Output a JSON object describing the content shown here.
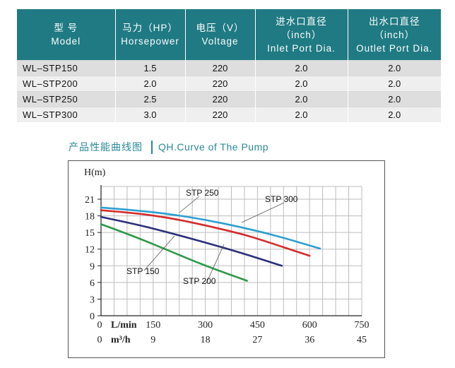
{
  "table": {
    "headers": [
      {
        "cn": "型 号",
        "en": "Model"
      },
      {
        "cn": "马力（HP）",
        "en": "Horsepower"
      },
      {
        "cn": "电压（V）",
        "en": "Voltage"
      },
      {
        "cn": "进水口直径",
        "paren": "（inch）",
        "en": "Inlet Port Dia."
      },
      {
        "cn": "出水口直径",
        "paren": "（inch）",
        "en": "Outlet Port Dia."
      }
    ],
    "rows": [
      {
        "model": "WL–STP150",
        "hp": "1.5",
        "voltage": "220",
        "inlet": "2.0",
        "outlet": "2.0"
      },
      {
        "model": "WL–STP200",
        "hp": "2.0",
        "voltage": "220",
        "inlet": "2.0",
        "outlet": "2.0"
      },
      {
        "model": "WL–STP250",
        "hp": "2.5",
        "voltage": "220",
        "inlet": "2.0",
        "outlet": "2.0"
      },
      {
        "model": "WL–STP300",
        "hp": "3.0",
        "voltage": "220",
        "inlet": "2.0",
        "outlet": "2.0"
      }
    ]
  },
  "heading": {
    "cn": "产品性能曲线图",
    "en": "QH.Curve of The Pump"
  },
  "chart_data": {
    "type": "line",
    "ylabel": "H(m)",
    "ylim": [
      0,
      21
    ],
    "yticks": [
      0,
      3,
      6,
      9,
      12,
      15,
      18,
      21
    ],
    "xlim": [
      0,
      750
    ],
    "xticks": [
      0,
      150,
      300,
      450,
      600,
      750
    ],
    "x_unit_label": "L/min",
    "x2_unit_label": "m³/h",
    "x2_ticks": [
      "0",
      "9",
      "18",
      "27",
      "36",
      "45"
    ],
    "grid": true,
    "series": [
      {
        "name": "STP 150",
        "color": "#2e9a48",
        "x": [
          0,
          100,
          200,
          300,
          420
        ],
        "y": [
          16.5,
          14.2,
          11.6,
          9.0,
          6.3
        ]
      },
      {
        "name": "STP 200",
        "color": "#2b2f7a",
        "x": [
          0,
          100,
          200,
          300,
          400,
          520
        ],
        "y": [
          17.8,
          16.5,
          14.9,
          13.2,
          11.4,
          9.0
        ]
      },
      {
        "name": "STP 250",
        "color": "#d42c2c",
        "x": [
          0,
          100,
          200,
          300,
          400,
          450,
          600
        ],
        "y": [
          19.0,
          18.5,
          17.6,
          16.3,
          14.8,
          13.9,
          10.8
        ]
      },
      {
        "name": "STP 300",
        "color": "#2d9fd1",
        "x": [
          0,
          100,
          200,
          300,
          400,
          500,
          630
        ],
        "y": [
          19.5,
          19.0,
          18.3,
          17.3,
          16.0,
          14.5,
          12.1
        ]
      }
    ]
  }
}
